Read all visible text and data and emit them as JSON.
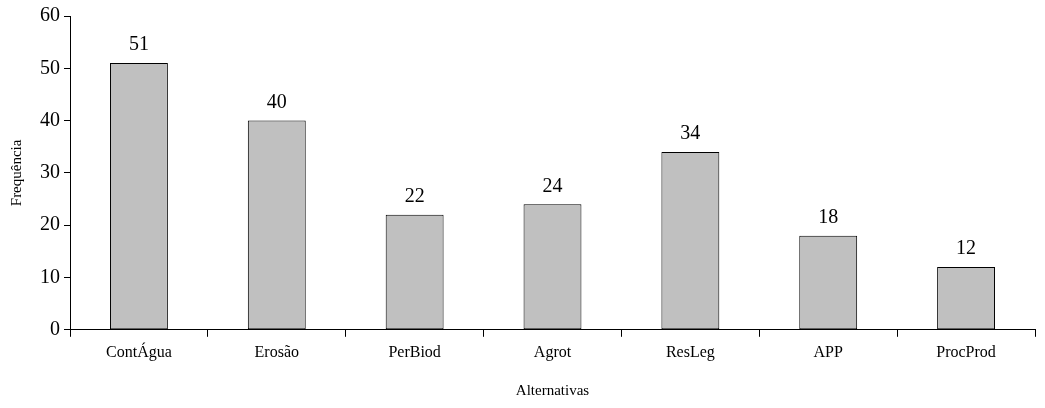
{
  "chart_data": {
    "type": "bar",
    "xlabel": "Alternativas",
    "ylabel": "Frequência",
    "categories": [
      "ContÁgua",
      "Erosão",
      "PerBiod",
      "Agrot",
      "ResLeg",
      "APP",
      "ProcProd"
    ],
    "values": [
      51,
      40,
      22,
      24,
      34,
      18,
      12
    ],
    "color": "#c0c0c0",
    "ylim": [
      0,
      60
    ],
    "yticks": [
      0,
      10,
      20,
      30,
      40,
      50,
      60
    ],
    "data_labels": true,
    "grid": false
  }
}
